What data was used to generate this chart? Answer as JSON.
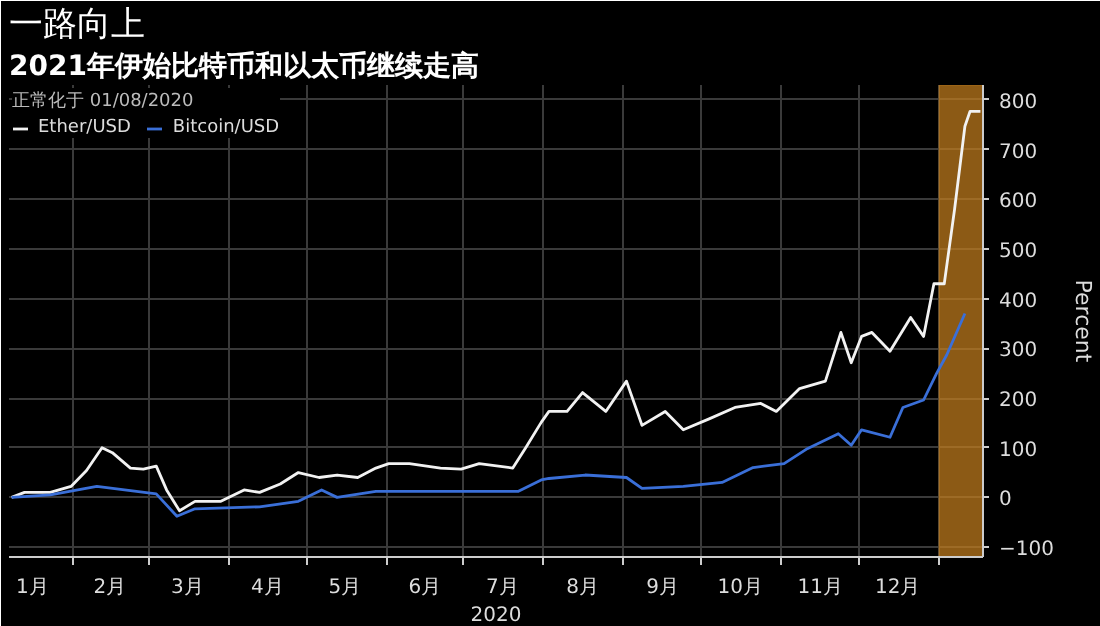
{
  "chart_data": {
    "type": "line",
    "title": "一路向上",
    "subtitle": "2021年伊始比特币和以太币继续走高",
    "legend_title": "正常化于 01/08/2020",
    "xlabel": "2020",
    "ylabel": "Percent",
    "xlim": [
      "2020-01-07",
      "2021-01-18"
    ],
    "ylim": [
      -120,
      830
    ],
    "xticks": [
      {
        "value": "2020-02-01",
        "label": null
      },
      {
        "value": "2020-03-01",
        "label": null
      },
      {
        "value": "2020-04-01",
        "label": null
      },
      {
        "value": "2020-05-01",
        "label": null
      },
      {
        "value": "2020-06-01",
        "label": null
      },
      {
        "value": "2020-07-01",
        "label": null
      },
      {
        "value": "2020-08-01",
        "label": null
      },
      {
        "value": "2020-09-01",
        "label": null
      },
      {
        "value": "2020-10-01",
        "label": null
      },
      {
        "value": "2020-11-01",
        "label": null
      },
      {
        "value": "2020-12-01",
        "label": null
      },
      {
        "value": "2021-01-01",
        "label": null
      },
      {
        "value": "2020-01-16",
        "label": "1月"
      },
      {
        "value": "2020-02-15",
        "label": "2月"
      },
      {
        "value": "2020-03-16",
        "label": "3月"
      },
      {
        "value": "2020-04-16",
        "label": "4月"
      },
      {
        "value": "2020-05-16",
        "label": "5月"
      },
      {
        "value": "2020-06-16",
        "label": "6月"
      },
      {
        "value": "2020-07-16",
        "label": "7月"
      },
      {
        "value": "2020-08-16",
        "label": "8月"
      },
      {
        "value": "2020-09-16",
        "label": "9月"
      },
      {
        "value": "2020-10-16",
        "label": "10月"
      },
      {
        "value": "2020-11-16",
        "label": "11月"
      },
      {
        "value": "2020-12-16",
        "label": "12月"
      }
    ],
    "yticks": [
      -100,
      0,
      100,
      200,
      300,
      400,
      500,
      600,
      700,
      800
    ],
    "grid": true,
    "legend": "top left",
    "line_style": "solid",
    "bands": [
      {
        "axis": "x",
        "from": "2021-01-01",
        "to": "2021-01-18",
        "color": "#c8801e"
      }
    ],
    "series": [
      {
        "name": "Ether/USD",
        "color": "#f2f2f2",
        "x": [
          "2020-01-08",
          "2020-01-13",
          "2020-01-23",
          "2020-01-31",
          "2020-02-06",
          "2020-02-12",
          "2020-02-16",
          "2020-02-23",
          "2020-02-28",
          "2020-03-04",
          "2020-03-08",
          "2020-03-13",
          "2020-03-19",
          "2020-03-29",
          "2020-04-07",
          "2020-04-13",
          "2020-04-21",
          "2020-04-28",
          "2020-05-06",
          "2020-05-13",
          "2020-05-21",
          "2020-05-28",
          "2020-06-02",
          "2020-06-10",
          "2020-06-22",
          "2020-06-30",
          "2020-07-07",
          "2020-07-20",
          "2020-07-25",
          "2020-07-31",
          "2020-08-03",
          "2020-08-10",
          "2020-08-16",
          "2020-08-25",
          "2020-09-02",
          "2020-09-08",
          "2020-09-17",
          "2020-09-24",
          "2020-10-04",
          "2020-10-14",
          "2020-10-24",
          "2020-10-30",
          "2020-11-08",
          "2020-11-18",
          "2020-11-24",
          "2020-11-28",
          "2020-12-02",
          "2020-12-06",
          "2020-12-13",
          "2020-12-21",
          "2020-12-26",
          "2020-12-30",
          "2021-01-03",
          "2021-01-07",
          "2021-01-11",
          "2021-01-13",
          "2021-01-17"
        ],
        "values": [
          0,
          10,
          10,
          22,
          54,
          100,
          90,
          59,
          57,
          63,
          15,
          -27,
          -8,
          -8,
          15,
          10,
          27,
          50,
          40,
          45,
          40,
          59,
          68,
          68,
          59,
          57,
          68,
          59,
          100,
          151,
          173,
          173,
          211,
          173,
          234,
          145,
          173,
          136,
          158,
          181,
          189,
          173,
          219,
          234,
          332,
          271,
          324,
          332,
          294,
          362,
          324,
          430,
          430,
          580,
          747,
          777,
          777
        ]
      },
      {
        "name": "Bitcoin/USD",
        "color": "#3a6fd8",
        "x": [
          "2020-01-08",
          "2020-01-23",
          "2020-02-10",
          "2020-03-04",
          "2020-03-12",
          "2020-03-19",
          "2020-04-13",
          "2020-04-28",
          "2020-05-07",
          "2020-05-13",
          "2020-05-28",
          "2020-06-28",
          "2020-07-22",
          "2020-07-31",
          "2020-08-03",
          "2020-08-17",
          "2020-09-02",
          "2020-09-08",
          "2020-09-24",
          "2020-10-09",
          "2020-10-21",
          "2020-11-02",
          "2020-11-11",
          "2020-11-23",
          "2020-11-28",
          "2020-12-02",
          "2020-12-13",
          "2020-12-18",
          "2020-12-26",
          "2020-12-31",
          "2021-01-04",
          "2021-01-11"
        ],
        "values": [
          0,
          5,
          22,
          7,
          -38,
          -23,
          -19,
          -8,
          15,
          0,
          12,
          12,
          12,
          35,
          38,
          45,
          40,
          18,
          22,
          30,
          60,
          68,
          98,
          128,
          105,
          136,
          121,
          181,
          196,
          249,
          287,
          370
        ]
      }
    ]
  }
}
